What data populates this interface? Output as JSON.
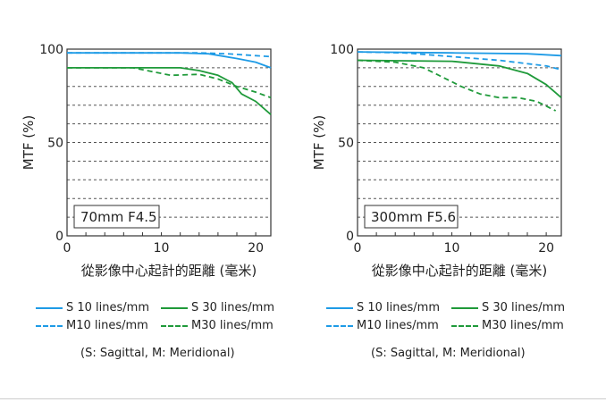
{
  "colors": {
    "blue": "#1e9be6",
    "green": "#1f9a3a"
  },
  "chart_data": [
    {
      "type": "line",
      "title": "70mm F4.5",
      "xlabel": "從影像中心起計的距離 (毫米)",
      "ylabel": "MTF (%)",
      "xlim": [
        0,
        21.6
      ],
      "ylim": [
        0,
        100
      ],
      "xticks": [
        "0",
        "10",
        "20"
      ],
      "yticks": [
        "0",
        "50",
        "100"
      ],
      "series": [
        {
          "name": "S 10 lines/mm",
          "color": "blue",
          "dash": false,
          "x": [
            0,
            12,
            15,
            18,
            20,
            21.6
          ],
          "y": [
            98,
            98,
            97.5,
            95,
            93,
            90
          ]
        },
        {
          "name": "M10 lines/mm",
          "color": "blue",
          "dash": true,
          "x": [
            0,
            14,
            17,
            20,
            21.6
          ],
          "y": [
            98,
            98,
            97.5,
            96.5,
            96
          ]
        },
        {
          "name": "S 30 lines/mm",
          "color": "green",
          "dash": false,
          "x": [
            0,
            12,
            14,
            16,
            17.5,
            18.5,
            20,
            21.6
          ],
          "y": [
            90,
            90,
            88.5,
            86,
            82,
            76,
            72,
            65
          ]
        },
        {
          "name": "M30 lines/mm",
          "color": "green",
          "dash": true,
          "x": [
            0,
            7,
            9,
            11,
            14,
            16,
            18,
            20,
            21.6
          ],
          "y": [
            90,
            90,
            88,
            86,
            86.5,
            84,
            80,
            77,
            74
          ]
        }
      ]
    },
    {
      "type": "line",
      "title": "300mm F5.6",
      "xlabel": "從影像中心起計的距離 (毫米)",
      "ylabel": "MTF (%)",
      "xlim": [
        0,
        21.6
      ],
      "ylim": [
        0,
        100
      ],
      "xticks": [
        "0",
        "10",
        "20"
      ],
      "yticks": [
        "0",
        "50",
        "100"
      ],
      "series": [
        {
          "name": "S 10 lines/mm",
          "color": "blue",
          "dash": false,
          "x": [
            0,
            10,
            18,
            21.6
          ],
          "y": [
            98.5,
            98,
            97.5,
            96.5
          ]
        },
        {
          "name": "M10 lines/mm",
          "color": "blue",
          "dash": true,
          "x": [
            0,
            5,
            10,
            15,
            20,
            21.6
          ],
          "y": [
            98.5,
            98,
            96,
            94,
            91,
            89
          ]
        },
        {
          "name": "S 30 lines/mm",
          "color": "green",
          "dash": false,
          "x": [
            0,
            10,
            15,
            18,
            20,
            21.6
          ],
          "y": [
            94,
            93.5,
            91,
            87,
            81,
            74
          ]
        },
        {
          "name": "M30 lines/mm",
          "color": "green",
          "dash": true,
          "x": [
            0,
            4,
            7,
            9,
            11,
            13,
            15,
            17,
            19,
            21
          ],
          "y": [
            94,
            93,
            90,
            85,
            80,
            76,
            74,
            74,
            72,
            67
          ]
        }
      ]
    }
  ],
  "legend": {
    "s10": "S 10 lines/mm",
    "s30": "S 30 lines/mm",
    "m10": "M10 lines/mm",
    "m30": "M30 lines/mm"
  },
  "note": "(S: Sagittal, M: Meridional)"
}
